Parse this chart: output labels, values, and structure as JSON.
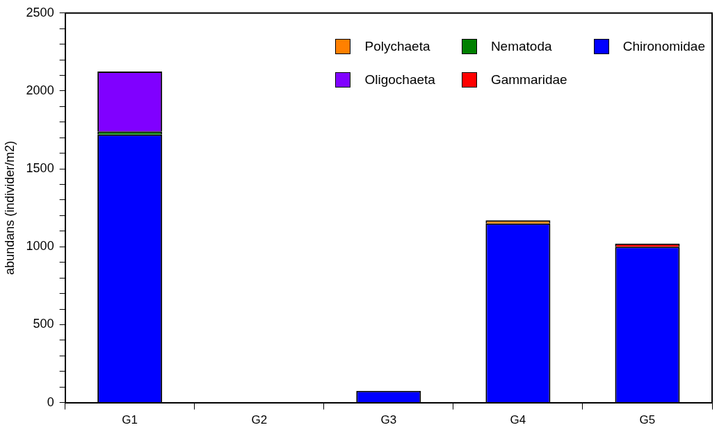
{
  "chart_data": {
    "type": "bar",
    "ylabel": "abundans (individer/m2)",
    "categories": [
      "G1",
      "G2",
      "G3",
      "G4",
      "G5"
    ],
    "stacked": true,
    "series": [
      {
        "name": "Chironomidae",
        "color": "#0000ff",
        "values": [
          1720,
          0,
          75,
          1150,
          1000
        ]
      },
      {
        "name": "Gammaridae",
        "color": "#ff0000",
        "values": [
          0,
          0,
          0,
          0,
          20
        ]
      },
      {
        "name": "Nematoda",
        "color": "#008000",
        "values": [
          20,
          0,
          0,
          0,
          0
        ]
      },
      {
        "name": "Oligochaeta",
        "color": "#8000ff",
        "values": [
          385,
          0,
          0,
          0,
          0
        ]
      },
      {
        "name": "Polychaeta",
        "color": "#ff8000",
        "values": [
          0,
          0,
          0,
          20,
          0
        ]
      }
    ],
    "ylim": [
      0,
      2500
    ],
    "yticks": [
      0,
      {
        "value": 100,
        "label": null
      },
      {
        "value": 200,
        "label": null
      },
      {
        "value": 300,
        "label": null
      },
      {
        "value": 400,
        "label": null
      },
      500,
      {
        "value": 600,
        "label": null
      },
      {
        "value": 700,
        "label": null
      },
      {
        "value": 800,
        "label": null
      },
      {
        "value": 900,
        "label": null
      },
      1000,
      {
        "value": 1100,
        "label": null
      },
      {
        "value": 1200,
        "label": null
      },
      {
        "value": 1300,
        "label": null
      },
      {
        "value": 1400,
        "label": null
      },
      1500,
      {
        "value": 1600,
        "label": null
      },
      {
        "value": 1700,
        "label": null
      },
      {
        "value": 1800,
        "label": null
      },
      {
        "value": 1900,
        "label": null
      },
      2000,
      {
        "value": 2100,
        "label": null
      },
      {
        "value": 2200,
        "label": null
      },
      {
        "value": 2300,
        "label": null
      },
      {
        "value": 2400,
        "label": null
      },
      2500
    ],
    "grid": false,
    "legend": "top right"
  }
}
